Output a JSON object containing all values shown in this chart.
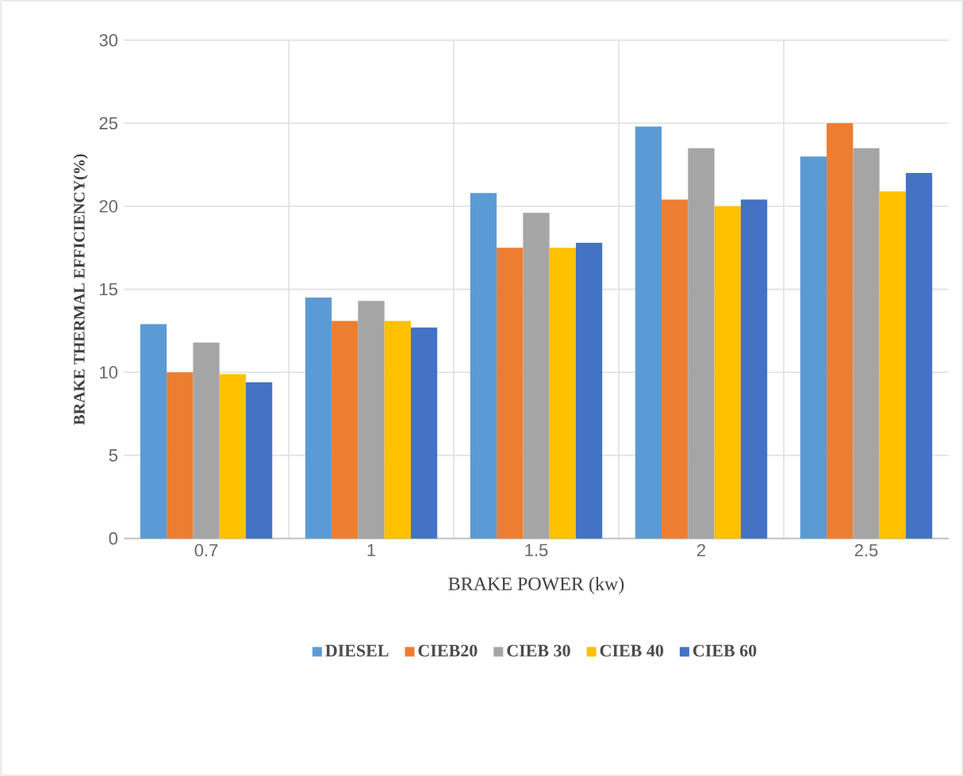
{
  "chart_data": {
    "type": "bar",
    "xlabel": "BRAKE POWER (kw)",
    "ylabel": "BRAKE THERMAL EFFICIENCY(%)",
    "categories": [
      "0.7",
      "1",
      "1.5",
      "2",
      "2.5"
    ],
    "series": [
      {
        "name": "DIESEL",
        "color": "#5b9bd5",
        "values": [
          12.9,
          14.5,
          20.8,
          24.8,
          23.0
        ]
      },
      {
        "name": "CIEB20",
        "color": "#ed7d31",
        "values": [
          10.0,
          13.1,
          17.5,
          20.4,
          25.0
        ]
      },
      {
        "name": "CIEB 30",
        "color": "#a5a5a5",
        "values": [
          11.8,
          14.3,
          19.6,
          23.5,
          23.5
        ]
      },
      {
        "name": "CIEB 40",
        "color": "#ffc000",
        "values": [
          9.9,
          13.1,
          17.5,
          20.0,
          20.9
        ]
      },
      {
        "name": "CIEB 60",
        "color": "#4472c4",
        "values": [
          9.4,
          12.7,
          17.8,
          20.4,
          22.0
        ]
      }
    ],
    "ylim": [
      0,
      30
    ],
    "yticks": [
      0,
      5,
      10,
      15,
      20,
      25,
      30
    ],
    "grid": true,
    "legend": "bottom"
  }
}
